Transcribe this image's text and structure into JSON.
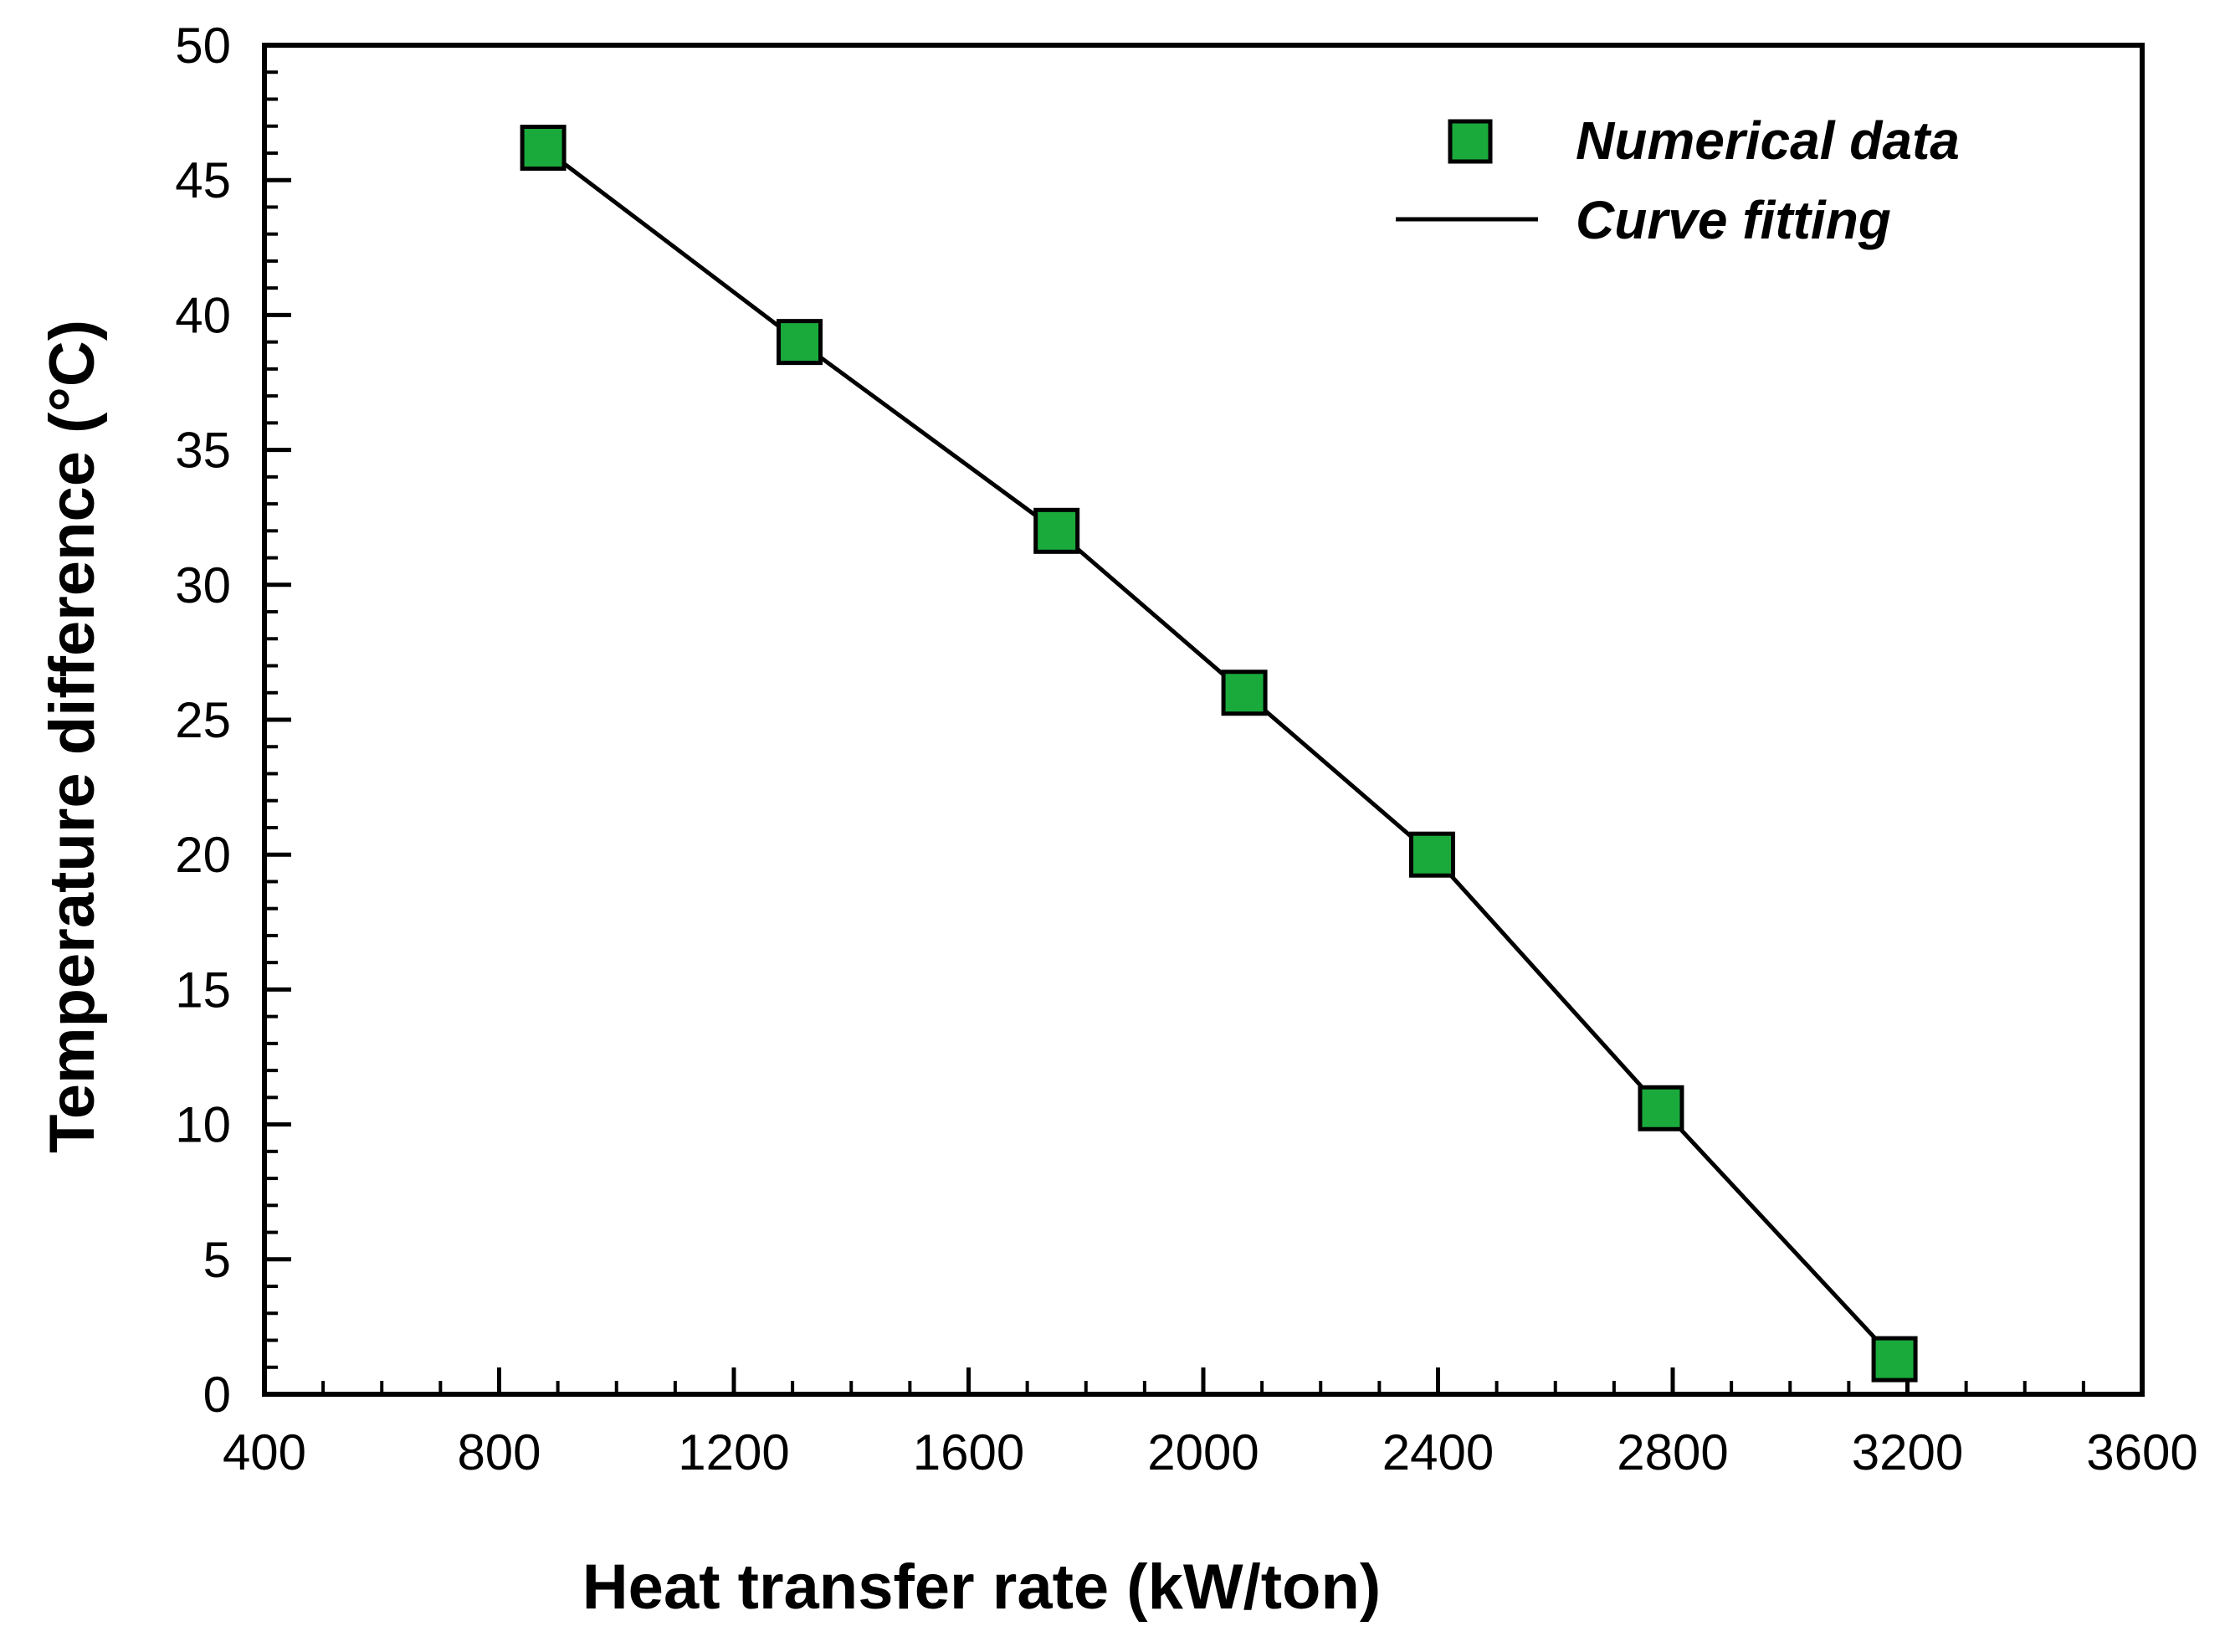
{
  "chart_data": {
    "type": "line",
    "title": "",
    "xlabel": "Heat transfer rate (kW/ton)",
    "ylabel": "Temperature difference (°C)",
    "xlim": [
      400,
      3600
    ],
    "ylim": [
      0,
      50
    ],
    "x_major_ticks": [
      400,
      800,
      1200,
      1600,
      2000,
      2400,
      2800,
      3200,
      3600
    ],
    "x_minor_step": 100,
    "y_major_ticks": [
      0,
      5,
      10,
      15,
      20,
      25,
      30,
      35,
      40,
      45,
      50
    ],
    "y_minor_step": 1,
    "x_tick_labels": [
      "400",
      "800",
      "1200",
      "1600",
      "2000",
      "2400",
      "2800",
      "3200",
      "3600"
    ],
    "y_tick_labels": [
      "0",
      "5",
      "10",
      "15",
      "20",
      "25",
      "30",
      "35",
      "40",
      "45",
      "50"
    ],
    "grid": false,
    "legend_position": "top-right",
    "series": [
      {
        "name": "Numerical data",
        "kind": "markers",
        "marker": "square",
        "color": "#1aaa3c",
        "x": [
          875,
          1312,
          1750,
          2070,
          2390,
          2780,
          3178
        ],
        "y": [
          46.2,
          39.0,
          32.0,
          26.0,
          20.0,
          10.6,
          1.3
        ]
      },
      {
        "name": "Curve fitting",
        "kind": "line",
        "color": "#000000",
        "x": [
          875,
          1312,
          1750,
          2070,
          2390,
          2780,
          3178
        ],
        "y": [
          46.2,
          39.0,
          32.0,
          26.0,
          20.0,
          10.6,
          1.3
        ]
      }
    ]
  }
}
